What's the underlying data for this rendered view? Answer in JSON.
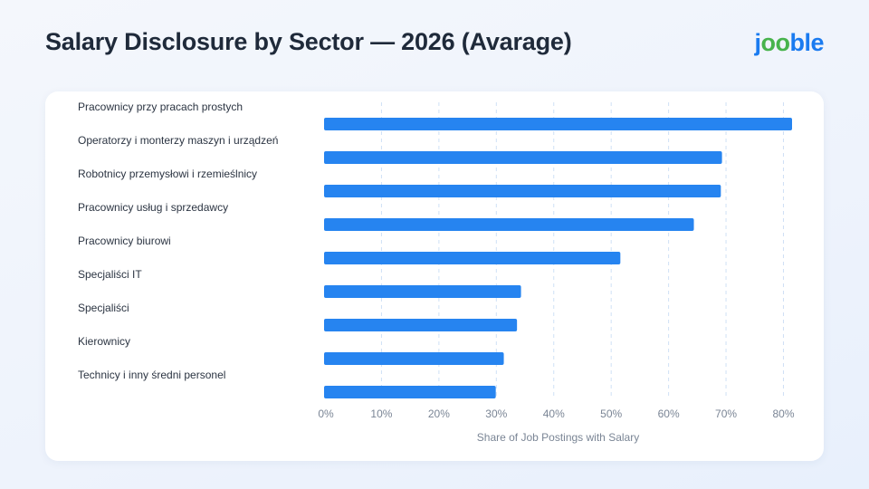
{
  "header": {
    "title": "Salary Disclosure by Sector — 2026 (Avarage)",
    "logo_parts": [
      "j",
      "oo",
      "ble"
    ]
  },
  "colors": {
    "bar": "#2684f0",
    "grid": "#cfe0f5",
    "logo_blue": "#1a7bf0",
    "logo_green": "#47b34c"
  },
  "chart_data": {
    "type": "bar",
    "orientation": "horizontal",
    "categories": [
      "Pracownicy przy pracach prostych",
      "Operatorzy i monterzy maszyn i urządzeń",
      "Robotnicy przemysłowi i rzemieślnicy",
      "Pracownicy usług i sprzedawcy",
      "Pracownicy biurowi",
      "Specjaliści IT",
      "Specjaliści",
      "Kierownicy",
      "Technicy i inny średni personel"
    ],
    "values": [
      81.5,
      69.3,
      69.1,
      64.4,
      51.6,
      34.3,
      33.6,
      31.3,
      29.9
    ],
    "xticks": [
      0,
      10,
      20,
      30,
      40,
      50,
      60,
      70,
      80
    ],
    "xtick_labels": [
      "0%",
      "10%",
      "20%",
      "30%",
      "40%",
      "50%",
      "60%",
      "70%",
      "80%"
    ],
    "xlim": [
      0,
      81.5
    ],
    "xlabel": "Share of Job Postings with Salary",
    "grid": true,
    "grid_style": "dashed vertical"
  }
}
